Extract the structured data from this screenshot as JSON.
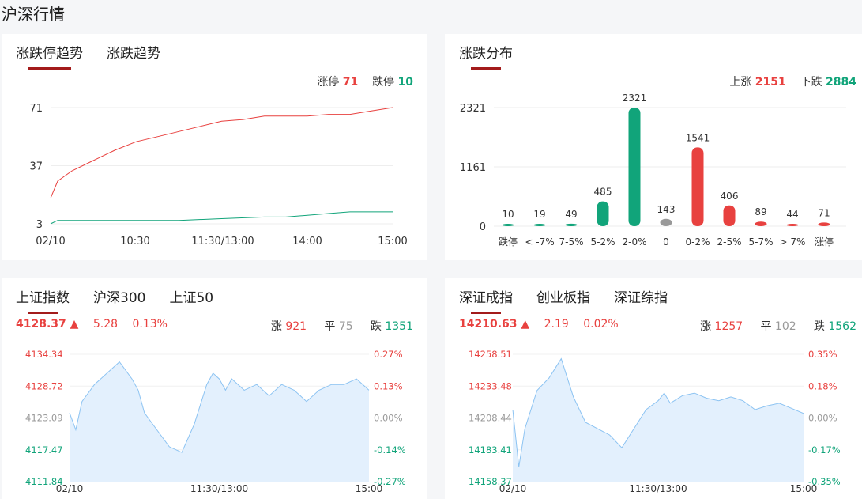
{
  "page_title": "沪深行情",
  "colors": {
    "red": "#e8413f",
    "green": "#11a47a",
    "gray": "#999999",
    "accent": "#a31b1b"
  },
  "limit_trend": {
    "tabs": [
      "涨跌停趋势",
      "涨跌趋势"
    ],
    "limit_up_label": "涨停",
    "limit_up_value": "71",
    "limit_down_label": "跌停",
    "limit_down_value": "10"
  },
  "distribution": {
    "tabs": [
      "涨跌分布"
    ],
    "up_label": "上涨",
    "up_value": "2151",
    "down_label": "下跌",
    "down_value": "2884"
  },
  "sh_index": {
    "tabs": [
      "上证指数",
      "沪深300",
      "上证50"
    ],
    "price": "4128.37",
    "change": "5.28",
    "change_pct": "0.13%",
    "up_label": "涨",
    "up": "921",
    "flat_label": "平",
    "flat": "75",
    "down_label": "跌",
    "down": "1351"
  },
  "sz_index": {
    "tabs": [
      "深证成指",
      "创业板指",
      "深证综指"
    ],
    "price": "14210.63",
    "change": "2.19",
    "change_pct": "0.02%",
    "up_label": "涨",
    "up": "1257",
    "flat_label": "平",
    "flat": "102",
    "down_label": "跌",
    "down": "1562"
  },
  "chart_data": [
    {
      "type": "line",
      "name": "limit-trend",
      "y_ticks": [
        "71",
        "37",
        "3"
      ],
      "ylim": [
        3,
        71
      ],
      "x_ticks": [
        "02/10",
        "10:30",
        "11:30/13:00",
        "14:00",
        "15:00"
      ],
      "series": [
        {
          "color": "#e8413f",
          "x": [
            0,
            5,
            15,
            30,
            45,
            60,
            75,
            90,
            105,
            120,
            135,
            150,
            165,
            180,
            195,
            210,
            225,
            240
          ],
          "y": [
            18,
            28,
            34,
            40,
            46,
            51,
            54,
            57,
            60,
            63,
            64,
            66,
            66,
            66,
            67,
            67,
            69,
            71
          ]
        },
        {
          "color": "#11a47a",
          "x": [
            0,
            5,
            30,
            60,
            90,
            120,
            150,
            165,
            180,
            195,
            210,
            225,
            240
          ],
          "y": [
            3,
            5,
            5,
            5,
            5,
            6,
            7,
            7,
            8,
            9,
            10,
            10,
            10
          ]
        }
      ]
    },
    {
      "type": "bar",
      "name": "up-down-distribution",
      "categories": [
        "跌停",
        "< -7%",
        "7-5%",
        "5-2%",
        "2-0%",
        "0",
        "0-2%",
        "2-5%",
        "5-7%",
        "> 7%",
        "涨停"
      ],
      "values": [
        10,
        19,
        49,
        485,
        2321,
        143,
        1541,
        406,
        89,
        44,
        71
      ],
      "colors": [
        "#11a47a",
        "#11a47a",
        "#11a47a",
        "#11a47a",
        "#11a47a",
        "#999999",
        "#e8413f",
        "#e8413f",
        "#e8413f",
        "#e8413f",
        "#e8413f"
      ],
      "y_ticks": [
        "2321",
        "1161",
        "0"
      ],
      "ylim": [
        0,
        2321
      ]
    },
    {
      "type": "area",
      "name": "sh-index",
      "left_ticks": [
        "4134.34",
        "4128.72",
        "4123.09",
        "4117.47",
        "4111.84"
      ],
      "right_ticks": [
        "0.27%",
        "0.13%",
        "0.00%",
        "-0.14%",
        "-0.27%"
      ],
      "x_ticks": [
        "02/10",
        "11:30/13:00",
        "15:00"
      ],
      "ylim": [
        4111.84,
        4134.34
      ],
      "x": [
        0,
        5,
        10,
        20,
        30,
        40,
        50,
        55,
        60,
        70,
        80,
        90,
        100,
        110,
        115,
        120,
        125,
        130,
        135,
        140,
        150,
        160,
        170,
        180,
        190,
        200,
        210,
        220,
        230,
        240
      ],
      "y": [
        4124,
        4121,
        4126,
        4129,
        4131,
        4133,
        4130,
        4128,
        4124,
        4121,
        4118,
        4117,
        4122,
        4129,
        4131,
        4130,
        4128,
        4130,
        4129,
        4128,
        4129,
        4127,
        4129,
        4128,
        4126,
        4128,
        4129,
        4129,
        4130,
        4128
      ]
    },
    {
      "type": "area",
      "name": "sz-index",
      "left_ticks": [
        "14258.51",
        "14233.48",
        "14208.44",
        "14183.41",
        "14158.37"
      ],
      "right_ticks": [
        "0.35%",
        "0.18%",
        "0.00%",
        "-0.17%",
        "-0.35%"
      ],
      "x_ticks": [
        "02/10",
        "11:30/13:00",
        "15:00"
      ],
      "ylim": [
        14158.37,
        14258.51
      ],
      "x": [
        0,
        5,
        10,
        20,
        30,
        40,
        45,
        50,
        60,
        70,
        80,
        90,
        100,
        110,
        120,
        125,
        130,
        140,
        150,
        160,
        170,
        180,
        190,
        200,
        210,
        220,
        230,
        240
      ],
      "y": [
        14215,
        14170,
        14200,
        14230,
        14240,
        14255,
        14240,
        14225,
        14205,
        14200,
        14195,
        14185,
        14200,
        14215,
        14222,
        14228,
        14220,
        14226,
        14228,
        14224,
        14222,
        14225,
        14222,
        14215,
        14218,
        14220,
        14216,
        14212
      ]
    }
  ]
}
